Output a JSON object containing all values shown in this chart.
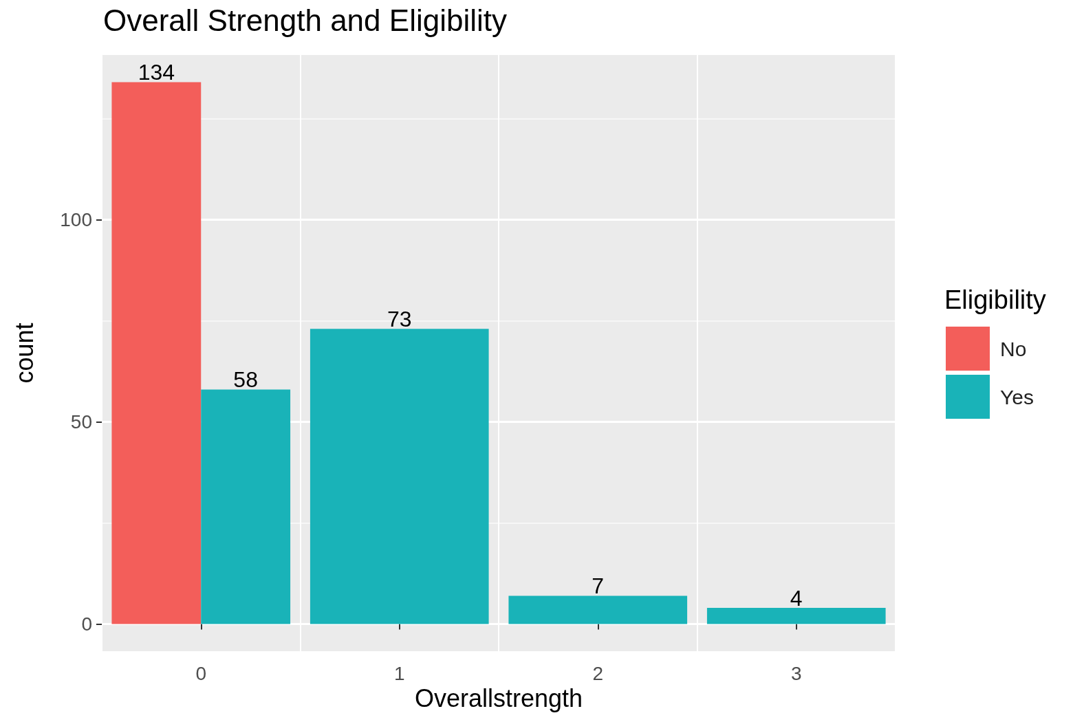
{
  "chart_data": {
    "type": "bar",
    "title": "Overall Strength and Eligibility",
    "xlabel": "Overallstrength",
    "ylabel": "count",
    "legend_title": "Eligibility",
    "categories": [
      "0",
      "1",
      "2",
      "3"
    ],
    "series": [
      {
        "name": "No",
        "color": "#f35e5a",
        "values": [
          134,
          null,
          null,
          null
        ]
      },
      {
        "name": "Yes",
        "color": "#19b3b8",
        "values": [
          58,
          73,
          7,
          4
        ]
      }
    ],
    "ylim": [
      -6.7,
      140.7
    ],
    "yticks": [
      0,
      50,
      100
    ],
    "grid": true,
    "legend": "right",
    "data_labels": true
  }
}
